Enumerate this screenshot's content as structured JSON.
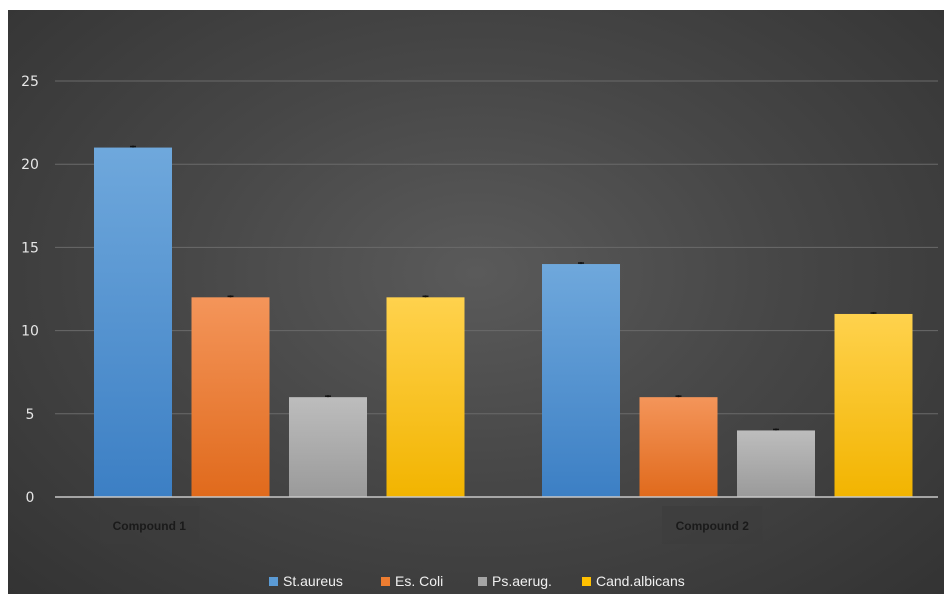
{
  "chart_data": {
    "type": "bar",
    "categories": [
      "Compound 1",
      "Compound 2"
    ],
    "series": [
      {
        "name": "St.aureus",
        "values": [
          21,
          14
        ],
        "color": "#5b9bd5"
      },
      {
        "name": "Es. Coli",
        "values": [
          12,
          6
        ],
        "color": "#ed7d31"
      },
      {
        "name": "Ps.aerug.",
        "values": [
          6,
          4
        ],
        "color": "#a5a5a5"
      },
      {
        "name": "Cand.albicans",
        "values": [
          12,
          11
        ],
        "color": "#ffc000"
      }
    ],
    "title": "",
    "xlabel": "",
    "ylabel": "",
    "ylim": [
      0,
      25
    ],
    "yticks": [
      0,
      5,
      10,
      15,
      20,
      25
    ],
    "grid": true,
    "legend_position": "bottom",
    "error_bars": true
  }
}
